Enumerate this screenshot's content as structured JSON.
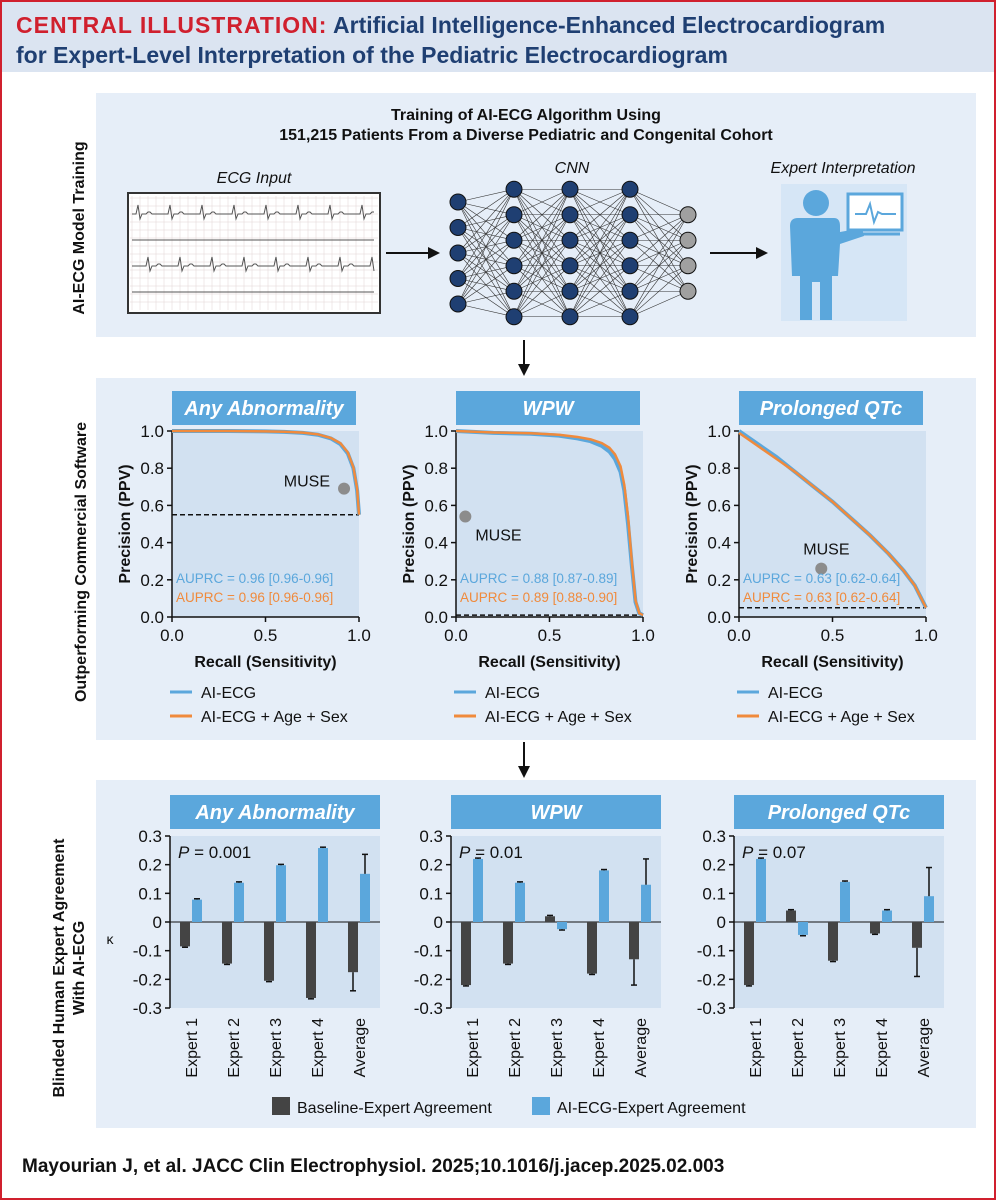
{
  "header": {
    "prefix": "CENTRAL ILLUSTRATION:",
    "line1": "Artificial Intelligence-Enhanced Electrocardiogram",
    "line2": "for Expert-Level Interpretation of the Pediatric Electrocardiogram"
  },
  "training": {
    "side_label": "AI-ECG Model Training",
    "title_line1": "Training of AI-ECG Algorithm Using",
    "title_line2": "151,215 Patients From a Diverse Pediatric and Congenital Cohort",
    "ecg_label": "ECG Input",
    "cnn_label": "CNN",
    "expert_label": "Expert Interpretation"
  },
  "pr_section": {
    "side_label": "Outperforming Commercial Software",
    "legend": [
      "AI-ECG",
      "AI-ECG + Age + Sex"
    ],
    "colors": {
      "ai": "#5ba7dc",
      "ai_age_sex": "#f08a3c",
      "muse": "#8c8c8c"
    }
  },
  "kappa_section": {
    "side_label_line1": "Blinded Human Expert Agreement",
    "side_label_line2": "With AI-ECG",
    "legend": [
      "Baseline-Expert Agreement",
      "AI-ECG-Expert Agreement"
    ],
    "colors": {
      "baseline": "#444444",
      "ai": "#5ba7dc"
    }
  },
  "chart_data": [
    {
      "type": "line",
      "title": "Any Abnormality",
      "xlabel": "Recall (Sensitivity)",
      "ylabel": "Precision (PPV)",
      "xlim": [
        0,
        1
      ],
      "ylim": [
        0,
        1
      ],
      "xticks": [
        "0.0",
        "0.5",
        "1.0"
      ],
      "yticks": [
        "0.0",
        "0.2",
        "0.4",
        "0.6",
        "0.8",
        "1.0"
      ],
      "baseline_prevalence": 0.55,
      "muse": {
        "label": "MUSE",
        "x": 0.92,
        "y": 0.69
      },
      "series": [
        {
          "name": "AI-ECG",
          "auprc": "AUPRC = 0.96 [0.96-0.96]",
          "x": [
            0,
            0.3,
            0.5,
            0.6,
            0.7,
            0.78,
            0.85,
            0.9,
            0.94,
            0.97,
            0.99,
            1.0
          ],
          "y": [
            1.0,
            1.0,
            0.998,
            0.995,
            0.99,
            0.98,
            0.96,
            0.93,
            0.88,
            0.8,
            0.68,
            0.55
          ]
        },
        {
          "name": "AI-ECG + Age + Sex",
          "auprc": "AUPRC = 0.96 [0.96-0.96]",
          "x": [
            0,
            0.3,
            0.5,
            0.6,
            0.7,
            0.78,
            0.85,
            0.9,
            0.94,
            0.97,
            0.99,
            1.0
          ],
          "y": [
            1.0,
            1.0,
            0.998,
            0.996,
            0.991,
            0.982,
            0.962,
            0.935,
            0.885,
            0.805,
            0.69,
            0.55
          ]
        }
      ]
    },
    {
      "type": "line",
      "title": "WPW",
      "xlabel": "Recall (Sensitivity)",
      "ylabel": "Precision (PPV)",
      "xlim": [
        0,
        1
      ],
      "ylim": [
        0,
        1
      ],
      "xticks": [
        "0.0",
        "0.5",
        "1.0"
      ],
      "yticks": [
        "0.0",
        "0.2",
        "0.4",
        "0.6",
        "0.8",
        "1.0"
      ],
      "baseline_prevalence": 0.01,
      "muse": {
        "label": "MUSE",
        "x": 0.05,
        "y": 0.54
      },
      "series": [
        {
          "name": "AI-ECG",
          "auprc": "AUPRC = 0.88 [0.87-0.89]",
          "x": [
            0,
            0.2,
            0.4,
            0.55,
            0.65,
            0.72,
            0.78,
            0.82,
            0.85,
            0.88,
            0.9,
            0.92,
            0.94,
            0.96,
            0.98,
            1.0
          ],
          "y": [
            1.0,
            0.99,
            0.985,
            0.975,
            0.96,
            0.945,
            0.92,
            0.89,
            0.85,
            0.78,
            0.68,
            0.5,
            0.28,
            0.08,
            0.02,
            0.01
          ]
        },
        {
          "name": "AI-ECG + Age + Sex",
          "auprc": "AUPRC = 0.89 [0.88-0.90]",
          "x": [
            0,
            0.2,
            0.4,
            0.55,
            0.65,
            0.72,
            0.78,
            0.82,
            0.85,
            0.88,
            0.9,
            0.92,
            0.94,
            0.96,
            0.98,
            1.0
          ],
          "y": [
            1.0,
            0.992,
            0.988,
            0.98,
            0.968,
            0.955,
            0.935,
            0.91,
            0.875,
            0.81,
            0.71,
            0.54,
            0.3,
            0.09,
            0.02,
            0.01
          ]
        }
      ]
    },
    {
      "type": "line",
      "title": "Prolonged QTc",
      "xlabel": "Recall (Sensitivity)",
      "ylabel": "Precision (PPV)",
      "xlim": [
        0,
        1
      ],
      "ylim": [
        0,
        1
      ],
      "xticks": [
        "0.0",
        "0.5",
        "1.0"
      ],
      "yticks": [
        "0.0",
        "0.2",
        "0.4",
        "0.6",
        "0.8",
        "1.0"
      ],
      "baseline_prevalence": 0.05,
      "muse": {
        "label": "MUSE",
        "x": 0.44,
        "y": 0.26
      },
      "series": [
        {
          "name": "AI-ECG",
          "auprc": "AUPRC = 0.63 [0.62-0.64]",
          "x": [
            0,
            0.1,
            0.2,
            0.3,
            0.4,
            0.5,
            0.6,
            0.7,
            0.8,
            0.88,
            0.94,
            0.98,
            1.0
          ],
          "y": [
            1.0,
            0.93,
            0.86,
            0.78,
            0.7,
            0.62,
            0.53,
            0.44,
            0.34,
            0.25,
            0.17,
            0.09,
            0.05
          ]
        },
        {
          "name": "AI-ECG + Age + Sex",
          "auprc": "AUPRC = 0.63 [0.62-0.64]",
          "x": [
            0,
            0.1,
            0.2,
            0.3,
            0.4,
            0.5,
            0.6,
            0.7,
            0.8,
            0.88,
            0.94,
            0.98,
            1.0
          ],
          "y": [
            0.99,
            0.92,
            0.85,
            0.78,
            0.7,
            0.62,
            0.53,
            0.44,
            0.34,
            0.25,
            0.17,
            0.09,
            0.05
          ]
        }
      ]
    },
    {
      "type": "bar",
      "title": "Any Abnormality",
      "ylabel": "κ",
      "ylim": [
        -0.3,
        0.3
      ],
      "yticks": [
        "0.3",
        "0.2",
        "0.1",
        "0",
        "-0.1",
        "-0.2",
        "-0.3"
      ],
      "annotation": "= 0.001",
      "p_label": "P",
      "categories": [
        "Expert 1",
        "Expert 2",
        "Expert 3",
        "Expert 4",
        "Average"
      ],
      "series": [
        {
          "name": "Baseline-Expert Agreement",
          "values": [
            -0.085,
            -0.145,
            -0.205,
            -0.265,
            -0.175
          ],
          "error": [
            0.003,
            0.003,
            0.003,
            0.003,
            0.065
          ]
        },
        {
          "name": "AI-ECG-Expert Agreement",
          "values": [
            0.078,
            0.137,
            0.198,
            0.258,
            0.168
          ],
          "error": [
            0.003,
            0.003,
            0.003,
            0.003,
            0.068
          ]
        }
      ]
    },
    {
      "type": "bar",
      "title": "WPW",
      "ylabel": "κ",
      "ylim": [
        -0.3,
        0.3
      ],
      "yticks": [
        "0.3",
        "0.2",
        "0.1",
        "0",
        "-0.1",
        "-0.2",
        "-0.3"
      ],
      "annotation": "= 0.01",
      "p_label": "P",
      "categories": [
        "Expert 1",
        "Expert 2",
        "Expert 3",
        "Expert 4",
        "Average"
      ],
      "series": [
        {
          "name": "Baseline-Expert Agreement",
          "values": [
            -0.22,
            -0.145,
            0.02,
            -0.18,
            -0.13
          ],
          "error": [
            0.003,
            0.003,
            0.003,
            0.003,
            0.09
          ]
        },
        {
          "name": "AI-ECG-Expert Agreement",
          "values": [
            0.22,
            0.137,
            -0.025,
            0.18,
            0.13
          ],
          "error": [
            0.003,
            0.003,
            0.003,
            0.003,
            0.09
          ]
        }
      ]
    },
    {
      "type": "bar",
      "title": "Prolonged QTc",
      "ylabel": "κ",
      "ylim": [
        -0.3,
        0.3
      ],
      "yticks": [
        "0.3",
        "0.2",
        "0.1",
        "0",
        "-0.1",
        "-0.2",
        "-0.3"
      ],
      "annotation": "= 0.07",
      "p_label": "P",
      "categories": [
        "Expert 1",
        "Expert 2",
        "Expert 3",
        "Expert 4",
        "Average"
      ],
      "series": [
        {
          "name": "Baseline-Expert Agreement",
          "values": [
            -0.22,
            0.04,
            -0.135,
            -0.04,
            -0.09
          ],
          "error": [
            0.003,
            0.003,
            0.003,
            0.003,
            0.1
          ]
        },
        {
          "name": "AI-ECG-Expert Agreement",
          "values": [
            0.22,
            -0.045,
            0.14,
            0.04,
            0.09
          ],
          "error": [
            0.003,
            0.003,
            0.003,
            0.003,
            0.1
          ]
        }
      ]
    }
  ],
  "citation": "Mayourian J, et al. JACC Clin Electrophysiol. 2025;10.1016/j.jacep.2025.02.003"
}
